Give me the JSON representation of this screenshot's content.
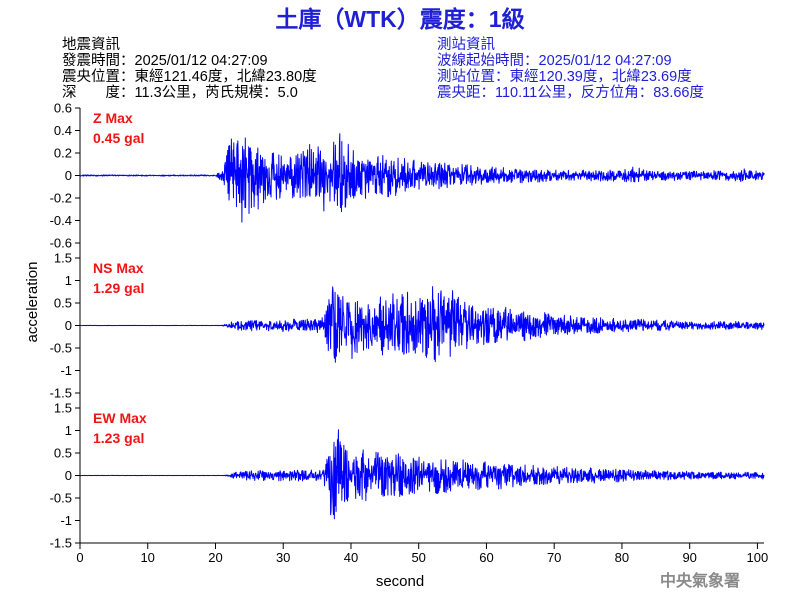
{
  "event_info": {
    "heading": "地震資訊",
    "lines": [
      "發震時間：2025/01/12 04:27:09",
      "震央位置：東經121.46度，北緯23.80度",
      "深　　度：11.3公里，芮氏規模：5.0"
    ]
  },
  "station_info": {
    "heading": "測站資訊",
    "lines": [
      "波線起始時間：2025/01/12 04:27:09",
      "測站位置：東經120.39度，北緯23.69度",
      "震央距：110.11公里，反方位角：83.66度"
    ]
  },
  "watermark": "中央氣象署",
  "colors": {
    "title": "#1f1fd6",
    "station_info": "#1f1fd6",
    "event_info": "#000000",
    "max_label": "#f01414",
    "trace": "#0000ff",
    "axes": "#000000",
    "watermark": "#8a8a8a"
  },
  "chart_data": {
    "type": "line",
    "title": "土庫（WTK）震度：1級",
    "xlabel": "second",
    "ylabel": "acceleration",
    "xlim": [
      0,
      101
    ],
    "xticks": [
      0,
      10,
      20,
      30,
      40,
      50,
      60,
      70,
      80,
      90,
      100
    ],
    "grid": false,
    "panels": [
      {
        "name": "Z Max",
        "max_value": "0.45 gal",
        "ylim": [
          -0.6,
          0.6
        ],
        "yticks": [
          0.6,
          0.4,
          0.2,
          0,
          -0.2,
          -0.4,
          -0.6
        ],
        "peak_amplitude_by_second": [
          0.006,
          0.006,
          0.006,
          0.006,
          0.006,
          0.006,
          0.006,
          0.006,
          0.006,
          0.006,
          0.006,
          0.006,
          0.006,
          0.006,
          0.006,
          0.006,
          0.006,
          0.006,
          0.006,
          0.006,
          0.006,
          0.06,
          0.34,
          0.4,
          0.44,
          0.36,
          0.32,
          0.28,
          0.26,
          0.22,
          0.2,
          0.22,
          0.2,
          0.24,
          0.28,
          0.3,
          0.32,
          0.3,
          0.4,
          0.32,
          0.26,
          0.22,
          0.2,
          0.22,
          0.2,
          0.18,
          0.2,
          0.17,
          0.16,
          0.15,
          0.14,
          0.13,
          0.12,
          0.12,
          0.11,
          0.1,
          0.1,
          0.1,
          0.09,
          0.09,
          0.08,
          0.08,
          0.08,
          0.07,
          0.07,
          0.07,
          0.06,
          0.06,
          0.06,
          0.06,
          0.05,
          0.05,
          0.05,
          0.05,
          0.05,
          0.05,
          0.05,
          0.05,
          0.05,
          0.05,
          0.05,
          0.06,
          0.09,
          0.06,
          0.05,
          0.045,
          0.045,
          0.045,
          0.045,
          0.045,
          0.045,
          0.045,
          0.045,
          0.045,
          0.045,
          0.045,
          0.045,
          0.05,
          0.06,
          0.05,
          0.045,
          0.045
        ]
      },
      {
        "name": "NS Max",
        "max_value": "1.29 gal",
        "ylim": [
          -1.5,
          1.5
        ],
        "yticks": [
          1.5,
          1,
          0.5,
          0,
          -0.5,
          -1,
          -1.5
        ],
        "peak_amplitude_by_second": [
          0.004,
          0.004,
          0.004,
          0.004,
          0.004,
          0.004,
          0.004,
          0.004,
          0.004,
          0.004,
          0.004,
          0.004,
          0.004,
          0.004,
          0.004,
          0.004,
          0.004,
          0.004,
          0.004,
          0.004,
          0.004,
          0.01,
          0.07,
          0.1,
          0.12,
          0.12,
          0.13,
          0.12,
          0.12,
          0.13,
          0.14,
          0.15,
          0.15,
          0.14,
          0.15,
          0.16,
          0.18,
          0.85,
          0.9,
          0.7,
          0.8,
          0.6,
          0.55,
          0.6,
          0.7,
          0.65,
          0.75,
          0.7,
          0.8,
          0.65,
          0.6,
          0.7,
          0.9,
          0.95,
          0.7,
          0.85,
          0.6,
          0.55,
          0.5,
          0.5,
          0.45,
          0.45,
          0.4,
          0.42,
          0.38,
          0.35,
          0.35,
          0.3,
          0.3,
          0.28,
          0.26,
          0.25,
          0.24,
          0.22,
          0.22,
          0.2,
          0.2,
          0.18,
          0.18,
          0.17,
          0.16,
          0.15,
          0.15,
          0.14,
          0.13,
          0.13,
          0.12,
          0.12,
          0.11,
          0.11,
          0.1,
          0.09,
          0.09,
          0.09,
          0.09,
          0.09,
          0.09,
          0.09,
          0.09,
          0.09,
          0.09,
          0.09
        ]
      },
      {
        "name": "EW Max",
        "max_value": "1.23 gal",
        "ylim": [
          -1.5,
          1.5
        ],
        "yticks": [
          1.5,
          1,
          0.5,
          0,
          -0.5,
          -1,
          -1.5
        ],
        "peak_amplitude_by_second": [
          0.004,
          0.004,
          0.004,
          0.004,
          0.004,
          0.004,
          0.004,
          0.004,
          0.004,
          0.004,
          0.004,
          0.004,
          0.004,
          0.004,
          0.004,
          0.004,
          0.004,
          0.004,
          0.004,
          0.004,
          0.004,
          0.004,
          0.02,
          0.09,
          0.1,
          0.12,
          0.11,
          0.12,
          0.1,
          0.12,
          0.13,
          0.12,
          0.12,
          0.13,
          0.14,
          0.15,
          0.16,
          0.95,
          1.1,
          0.75,
          0.7,
          0.6,
          0.65,
          0.55,
          0.6,
          0.5,
          0.55,
          0.5,
          0.5,
          0.45,
          0.45,
          0.45,
          0.4,
          0.45,
          0.4,
          0.4,
          0.38,
          0.36,
          0.35,
          0.35,
          0.32,
          0.3,
          0.3,
          0.28,
          0.28,
          0.26,
          0.25,
          0.24,
          0.23,
          0.22,
          0.21,
          0.2,
          0.19,
          0.18,
          0.18,
          0.17,
          0.17,
          0.16,
          0.15,
          0.15,
          0.14,
          0.13,
          0.13,
          0.12,
          0.12,
          0.11,
          0.11,
          0.1,
          0.1,
          0.1,
          0.09,
          0.08,
          0.08,
          0.08,
          0.08,
          0.08,
          0.08,
          0.08,
          0.08,
          0.08,
          0.08,
          0.08
        ]
      }
    ]
  }
}
